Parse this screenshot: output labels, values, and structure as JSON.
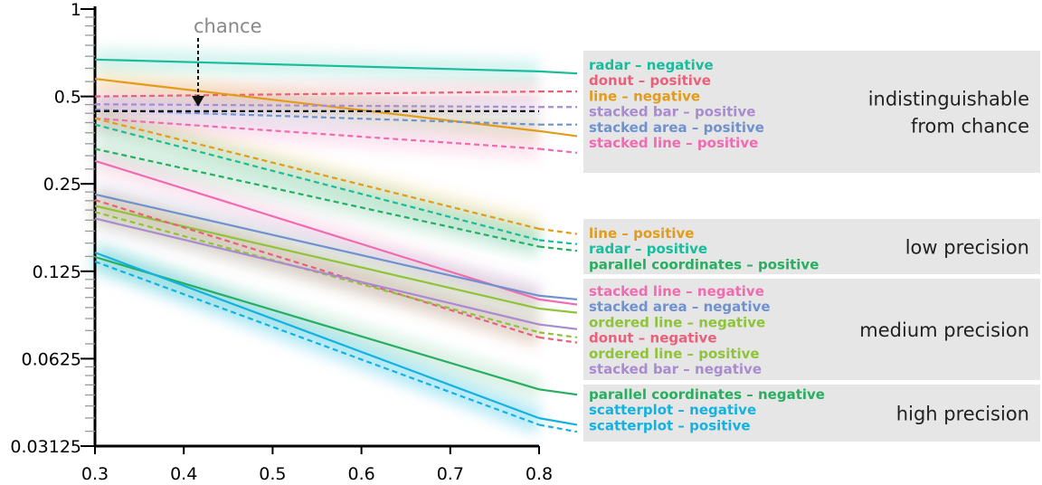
{
  "chart_data": {
    "type": "line",
    "title": "",
    "xlabel": "",
    "ylabel": "",
    "x_scale": "linear",
    "y_scale": "log2",
    "xlim": [
      0.3,
      0.8
    ],
    "ylim": [
      0.03125,
      1
    ],
    "x_ticks": [
      "0.3",
      "0.4",
      "0.5",
      "0.6",
      "0.7",
      "0.8"
    ],
    "y_ticks": [
      "1",
      "0.5",
      "0.25",
      "0.125",
      "0.0625",
      "0.03125"
    ],
    "x_tick_values": [
      0.3,
      0.4,
      0.5,
      0.6,
      0.7,
      0.8
    ],
    "y_tick_values": [
      1,
      0.5,
      0.25,
      0.125,
      0.0625,
      0.03125
    ],
    "chance": {
      "label": "chance",
      "value": 0.445,
      "x_start": 0.3,
      "x_end": 0.8
    },
    "series": [
      {
        "name": "radar – negative",
        "chart": "radar",
        "correlation": "negative",
        "color": "#1abc9c",
        "dash": false,
        "x": [
          0.3,
          0.8
        ],
        "y": [
          0.67,
          0.61
        ],
        "ext_y": 0.6,
        "group": "indistinguishable"
      },
      {
        "name": "donut – positive",
        "chart": "donut",
        "correlation": "positive",
        "color": "#e8607a",
        "dash": true,
        "x": [
          0.3,
          0.8
        ],
        "y": [
          0.5,
          0.52
        ],
        "ext_y": 0.52,
        "group": "indistinguishable"
      },
      {
        "name": "line – negative",
        "chart": "line",
        "correlation": "negative",
        "color": "#e39b1a",
        "dash": false,
        "x": [
          0.3,
          0.8
        ],
        "y": [
          0.575,
          0.38
        ],
        "ext_y": 0.365,
        "group": "indistinguishable"
      },
      {
        "name": "stacked bar – positive",
        "chart": "stacked bar",
        "correlation": "positive",
        "color": "#a98bd0",
        "dash": true,
        "x": [
          0.3,
          0.8
        ],
        "y": [
          0.47,
          0.46
        ],
        "ext_y": 0.46,
        "group": "indistinguishable"
      },
      {
        "name": "stacked area – positive",
        "chart": "stacked area",
        "correlation": "positive",
        "color": "#6f91cf",
        "dash": true,
        "x": [
          0.3,
          0.8
        ],
        "y": [
          0.45,
          0.4
        ],
        "ext_y": 0.4,
        "group": "indistinguishable"
      },
      {
        "name": "stacked line – positive",
        "chart": "stacked line",
        "correlation": "positive",
        "color": "#f06bb0",
        "dash": true,
        "x": [
          0.3,
          0.8
        ],
        "y": [
          0.42,
          0.33
        ],
        "ext_y": 0.32,
        "group": "indistinguishable"
      },
      {
        "name": "line – positive",
        "chart": "line",
        "correlation": "positive",
        "color": "#e39b1a",
        "dash": true,
        "x": [
          0.3,
          0.8
        ],
        "y": [
          0.42,
          0.175
        ],
        "ext_y": 0.168,
        "group": "low"
      },
      {
        "name": "radar – positive",
        "chart": "radar",
        "correlation": "positive",
        "color": "#1abc9c",
        "dash": true,
        "x": [
          0.3,
          0.8
        ],
        "y": [
          0.4,
          0.16
        ],
        "ext_y": 0.155,
        "group": "low"
      },
      {
        "name": "parallel coordinates – positive",
        "chart": "parallel coordinates",
        "correlation": "positive",
        "color": "#27ae60",
        "dash": true,
        "x": [
          0.3,
          0.8
        ],
        "y": [
          0.33,
          0.152
        ],
        "ext_y": 0.147,
        "group": "low"
      },
      {
        "name": "stacked line – negative",
        "chart": "stacked line",
        "correlation": "negative",
        "color": "#f06bb0",
        "dash": false,
        "x": [
          0.3,
          0.8
        ],
        "y": [
          0.3,
          0.1
        ],
        "ext_y": 0.096,
        "group": "medium"
      },
      {
        "name": "stacked area – negative",
        "chart": "stacked area",
        "correlation": "negative",
        "color": "#6f91cf",
        "dash": false,
        "x": [
          0.3,
          0.8
        ],
        "y": [
          0.23,
          0.103
        ],
        "ext_y": 0.1,
        "group": "medium"
      },
      {
        "name": "ordered line – negative",
        "chart": "ordered line",
        "correlation": "negative",
        "color": "#8fc33a",
        "dash": false,
        "x": [
          0.3,
          0.8
        ],
        "y": [
          0.21,
          0.093
        ],
        "ext_y": 0.09,
        "group": "medium"
      },
      {
        "name": "donut – negative",
        "chart": "donut",
        "correlation": "negative",
        "color": "#e8607a",
        "dash": true,
        "x": [
          0.3,
          0.8
        ],
        "y": [
          0.22,
          0.074
        ],
        "ext_y": 0.071,
        "group": "medium"
      },
      {
        "name": "ordered line – positive",
        "chart": "ordered line",
        "correlation": "positive",
        "color": "#8fc33a",
        "dash": true,
        "x": [
          0.3,
          0.8
        ],
        "y": [
          0.2,
          0.077
        ],
        "ext_y": 0.074,
        "group": "medium"
      },
      {
        "name": "stacked bar – negative",
        "chart": "stacked bar",
        "correlation": "negative",
        "color": "#a98bd0",
        "dash": false,
        "x": [
          0.3,
          0.8
        ],
        "y": [
          0.19,
          0.082
        ],
        "ext_y": 0.079,
        "group": "medium"
      },
      {
        "name": "parallel coordinates – negative",
        "chart": "parallel coordinates",
        "correlation": "negative",
        "color": "#27ae60",
        "dash": false,
        "x": [
          0.3,
          0.8
        ],
        "y": [
          0.14,
          0.049
        ],
        "ext_y": 0.047,
        "group": "high"
      },
      {
        "name": "scatterplot – negative",
        "chart": "scatterplot",
        "correlation": "negative",
        "color": "#14b2e0",
        "dash": false,
        "x": [
          0.3,
          0.8
        ],
        "y": [
          0.145,
          0.039
        ],
        "ext_y": 0.037,
        "group": "high"
      },
      {
        "name": "scatterplot – positive",
        "chart": "scatterplot",
        "correlation": "positive",
        "color": "#14b2e0",
        "dash": true,
        "x": [
          0.3,
          0.8
        ],
        "y": [
          0.135,
          0.037
        ],
        "ext_y": 0.035,
        "group": "high"
      }
    ],
    "groups": [
      {
        "id": "indistinguishable",
        "label_lines": [
          "indistinguishable",
          "from chance"
        ]
      },
      {
        "id": "low",
        "label_lines": [
          "low precision"
        ]
      },
      {
        "id": "medium",
        "label_lines": [
          "medium precision"
        ]
      },
      {
        "id": "high",
        "label_lines": [
          "high precision"
        ]
      }
    ]
  }
}
